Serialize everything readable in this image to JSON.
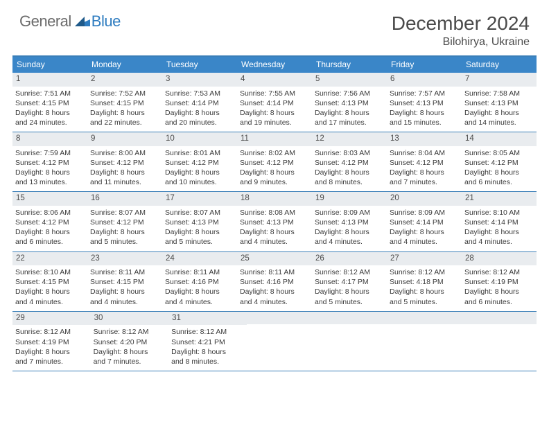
{
  "logo": {
    "text1": "General",
    "text2": "Blue"
  },
  "title": "December 2024",
  "location": "Bilohirya, Ukraine",
  "colors": {
    "header_bar": "#3a86c8",
    "accent_line": "#3a7fb8",
    "daynum_bg": "#e9ecef",
    "logo_gray": "#6b6b6b",
    "logo_blue": "#2e7cc0",
    "text": "#3a3a3a"
  },
  "weekdays": [
    "Sunday",
    "Monday",
    "Tuesday",
    "Wednesday",
    "Thursday",
    "Friday",
    "Saturday"
  ],
  "weeks": [
    [
      {
        "n": "1",
        "sr": "Sunrise: 7:51 AM",
        "ss": "Sunset: 4:15 PM",
        "d1": "Daylight: 8 hours",
        "d2": "and 24 minutes."
      },
      {
        "n": "2",
        "sr": "Sunrise: 7:52 AM",
        "ss": "Sunset: 4:15 PM",
        "d1": "Daylight: 8 hours",
        "d2": "and 22 minutes."
      },
      {
        "n": "3",
        "sr": "Sunrise: 7:53 AM",
        "ss": "Sunset: 4:14 PM",
        "d1": "Daylight: 8 hours",
        "d2": "and 20 minutes."
      },
      {
        "n": "4",
        "sr": "Sunrise: 7:55 AM",
        "ss": "Sunset: 4:14 PM",
        "d1": "Daylight: 8 hours",
        "d2": "and 19 minutes."
      },
      {
        "n": "5",
        "sr": "Sunrise: 7:56 AM",
        "ss": "Sunset: 4:13 PM",
        "d1": "Daylight: 8 hours",
        "d2": "and 17 minutes."
      },
      {
        "n": "6",
        "sr": "Sunrise: 7:57 AM",
        "ss": "Sunset: 4:13 PM",
        "d1": "Daylight: 8 hours",
        "d2": "and 15 minutes."
      },
      {
        "n": "7",
        "sr": "Sunrise: 7:58 AM",
        "ss": "Sunset: 4:13 PM",
        "d1": "Daylight: 8 hours",
        "d2": "and 14 minutes."
      }
    ],
    [
      {
        "n": "8",
        "sr": "Sunrise: 7:59 AM",
        "ss": "Sunset: 4:12 PM",
        "d1": "Daylight: 8 hours",
        "d2": "and 13 minutes."
      },
      {
        "n": "9",
        "sr": "Sunrise: 8:00 AM",
        "ss": "Sunset: 4:12 PM",
        "d1": "Daylight: 8 hours",
        "d2": "and 11 minutes."
      },
      {
        "n": "10",
        "sr": "Sunrise: 8:01 AM",
        "ss": "Sunset: 4:12 PM",
        "d1": "Daylight: 8 hours",
        "d2": "and 10 minutes."
      },
      {
        "n": "11",
        "sr": "Sunrise: 8:02 AM",
        "ss": "Sunset: 4:12 PM",
        "d1": "Daylight: 8 hours",
        "d2": "and 9 minutes."
      },
      {
        "n": "12",
        "sr": "Sunrise: 8:03 AM",
        "ss": "Sunset: 4:12 PM",
        "d1": "Daylight: 8 hours",
        "d2": "and 8 minutes."
      },
      {
        "n": "13",
        "sr": "Sunrise: 8:04 AM",
        "ss": "Sunset: 4:12 PM",
        "d1": "Daylight: 8 hours",
        "d2": "and 7 minutes."
      },
      {
        "n": "14",
        "sr": "Sunrise: 8:05 AM",
        "ss": "Sunset: 4:12 PM",
        "d1": "Daylight: 8 hours",
        "d2": "and 6 minutes."
      }
    ],
    [
      {
        "n": "15",
        "sr": "Sunrise: 8:06 AM",
        "ss": "Sunset: 4:12 PM",
        "d1": "Daylight: 8 hours",
        "d2": "and 6 minutes."
      },
      {
        "n": "16",
        "sr": "Sunrise: 8:07 AM",
        "ss": "Sunset: 4:12 PM",
        "d1": "Daylight: 8 hours",
        "d2": "and 5 minutes."
      },
      {
        "n": "17",
        "sr": "Sunrise: 8:07 AM",
        "ss": "Sunset: 4:13 PM",
        "d1": "Daylight: 8 hours",
        "d2": "and 5 minutes."
      },
      {
        "n": "18",
        "sr": "Sunrise: 8:08 AM",
        "ss": "Sunset: 4:13 PM",
        "d1": "Daylight: 8 hours",
        "d2": "and 4 minutes."
      },
      {
        "n": "19",
        "sr": "Sunrise: 8:09 AM",
        "ss": "Sunset: 4:13 PM",
        "d1": "Daylight: 8 hours",
        "d2": "and 4 minutes."
      },
      {
        "n": "20",
        "sr": "Sunrise: 8:09 AM",
        "ss": "Sunset: 4:14 PM",
        "d1": "Daylight: 8 hours",
        "d2": "and 4 minutes."
      },
      {
        "n": "21",
        "sr": "Sunrise: 8:10 AM",
        "ss": "Sunset: 4:14 PM",
        "d1": "Daylight: 8 hours",
        "d2": "and 4 minutes."
      }
    ],
    [
      {
        "n": "22",
        "sr": "Sunrise: 8:10 AM",
        "ss": "Sunset: 4:15 PM",
        "d1": "Daylight: 8 hours",
        "d2": "and 4 minutes."
      },
      {
        "n": "23",
        "sr": "Sunrise: 8:11 AM",
        "ss": "Sunset: 4:15 PM",
        "d1": "Daylight: 8 hours",
        "d2": "and 4 minutes."
      },
      {
        "n": "24",
        "sr": "Sunrise: 8:11 AM",
        "ss": "Sunset: 4:16 PM",
        "d1": "Daylight: 8 hours",
        "d2": "and 4 minutes."
      },
      {
        "n": "25",
        "sr": "Sunrise: 8:11 AM",
        "ss": "Sunset: 4:16 PM",
        "d1": "Daylight: 8 hours",
        "d2": "and 4 minutes."
      },
      {
        "n": "26",
        "sr": "Sunrise: 8:12 AM",
        "ss": "Sunset: 4:17 PM",
        "d1": "Daylight: 8 hours",
        "d2": "and 5 minutes."
      },
      {
        "n": "27",
        "sr": "Sunrise: 8:12 AM",
        "ss": "Sunset: 4:18 PM",
        "d1": "Daylight: 8 hours",
        "d2": "and 5 minutes."
      },
      {
        "n": "28",
        "sr": "Sunrise: 8:12 AM",
        "ss": "Sunset: 4:19 PM",
        "d1": "Daylight: 8 hours",
        "d2": "and 6 minutes."
      }
    ],
    [
      {
        "n": "29",
        "sr": "Sunrise: 8:12 AM",
        "ss": "Sunset: 4:19 PM",
        "d1": "Daylight: 8 hours",
        "d2": "and 7 minutes."
      },
      {
        "n": "30",
        "sr": "Sunrise: 8:12 AM",
        "ss": "Sunset: 4:20 PM",
        "d1": "Daylight: 8 hours",
        "d2": "and 7 minutes."
      },
      {
        "n": "31",
        "sr": "Sunrise: 8:12 AM",
        "ss": "Sunset: 4:21 PM",
        "d1": "Daylight: 8 hours",
        "d2": "and 8 minutes."
      },
      null,
      null,
      null,
      null
    ]
  ]
}
